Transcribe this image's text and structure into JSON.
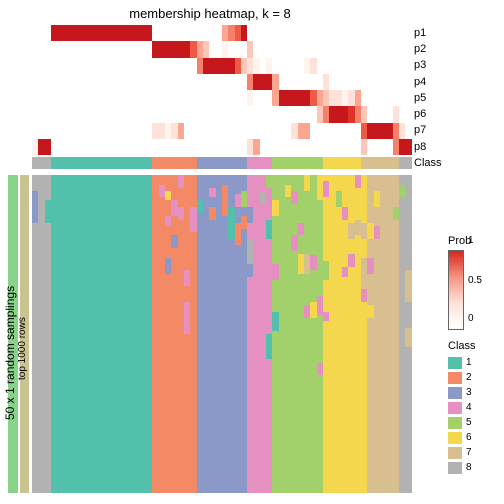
{
  "title": "membership heatmap, k = 8",
  "row_labels": [
    "p1",
    "p2",
    "p3",
    "p4",
    "p5",
    "p6",
    "p7",
    "p8"
  ],
  "class_row_label": "Class",
  "ylabel_sampling": "50 x 1 random samplings",
  "ylabel_rows": "top 1000 rows",
  "n_cols": 60,
  "prob_colors": {
    "0": "#ffffff",
    "1": "#fff3ef",
    "2": "#fee2da",
    "3": "#fcc7b9",
    "4": "#fba690",
    "5": "#f6806a",
    "6": "#ee5a45",
    "7": "#e03328",
    "8": "#c5171c"
  },
  "class_colors": [
    "#53c0ac",
    "#f48a65",
    "#8a99c8",
    "#e690c2",
    "#a2d16b",
    "#f4d74c",
    "#d7bf8f",
    "#b2b2b2"
  ],
  "prob_matrix": [
    [
      0,
      0,
      0,
      8,
      8,
      8,
      8,
      8,
      8,
      8,
      8,
      8,
      8,
      8,
      8,
      8,
      8,
      8,
      8,
      0,
      0,
      0,
      0,
      0,
      0,
      0,
      0,
      0,
      0,
      0,
      4,
      5,
      6,
      8,
      0,
      0,
      0,
      0,
      0,
      0,
      0,
      0,
      0,
      0,
      0,
      0,
      0,
      0,
      0,
      0,
      0,
      0,
      0,
      0,
      0,
      0,
      0,
      0,
      0,
      0
    ],
    [
      0,
      0,
      0,
      0,
      0,
      0,
      0,
      0,
      0,
      0,
      0,
      0,
      0,
      0,
      0,
      0,
      0,
      0,
      0,
      8,
      8,
      8,
      8,
      8,
      8,
      6,
      4,
      3,
      0,
      0,
      1,
      0,
      0,
      0,
      3,
      0,
      0,
      0,
      0,
      0,
      0,
      0,
      0,
      0,
      0,
      0,
      0,
      0,
      0,
      0,
      0,
      0,
      0,
      0,
      0,
      0,
      0,
      0,
      0,
      0
    ],
    [
      0,
      0,
      0,
      0,
      0,
      0,
      0,
      0,
      0,
      0,
      0,
      0,
      0,
      0,
      0,
      0,
      0,
      0,
      0,
      0,
      0,
      0,
      0,
      0,
      0,
      0,
      5,
      8,
      8,
      8,
      8,
      8,
      6,
      3,
      2,
      1,
      0,
      1,
      0,
      0,
      0,
      0,
      0,
      1,
      2,
      0,
      0,
      0,
      0,
      0,
      0,
      0,
      0,
      0,
      0,
      0,
      0,
      0,
      0,
      0
    ],
    [
      0,
      0,
      0,
      0,
      0,
      0,
      0,
      0,
      0,
      0,
      0,
      0,
      0,
      0,
      0,
      0,
      0,
      0,
      0,
      0,
      0,
      0,
      0,
      0,
      0,
      0,
      0,
      0,
      0,
      0,
      0,
      0,
      0,
      0,
      5,
      8,
      8,
      8,
      4,
      0,
      0,
      0,
      0,
      0,
      0,
      0,
      2,
      0,
      0,
      0,
      0,
      0,
      0,
      0,
      0,
      0,
      0,
      0,
      0,
      0
    ],
    [
      0,
      0,
      0,
      0,
      0,
      0,
      0,
      0,
      0,
      0,
      0,
      0,
      0,
      0,
      0,
      0,
      0,
      0,
      0,
      0,
      0,
      0,
      0,
      0,
      0,
      0,
      0,
      0,
      0,
      0,
      0,
      0,
      0,
      0,
      1,
      0,
      0,
      0,
      4,
      8,
      8,
      8,
      8,
      8,
      6,
      4,
      3,
      2,
      2,
      1,
      2,
      4,
      0,
      0,
      0,
      0,
      0,
      0,
      0,
      0
    ],
    [
      0,
      0,
      0,
      0,
      0,
      0,
      0,
      0,
      0,
      0,
      0,
      0,
      0,
      0,
      0,
      0,
      0,
      0,
      0,
      0,
      0,
      0,
      0,
      0,
      0,
      0,
      0,
      0,
      0,
      0,
      0,
      0,
      0,
      0,
      0,
      0,
      0,
      0,
      0,
      0,
      0,
      0,
      0,
      0,
      0,
      3,
      5,
      8,
      8,
      8,
      7,
      5,
      3,
      0,
      0,
      0,
      0,
      2,
      0,
      0
    ],
    [
      0,
      0,
      0,
      0,
      0,
      0,
      0,
      0,
      0,
      0,
      0,
      0,
      0,
      0,
      0,
      0,
      0,
      0,
      0,
      2,
      2,
      1,
      2,
      4,
      0,
      0,
      0,
      0,
      0,
      0,
      0,
      0,
      0,
      0,
      0,
      0,
      0,
      0,
      0,
      0,
      0,
      2,
      4,
      4,
      0,
      0,
      0,
      0,
      0,
      0,
      0,
      0,
      6,
      8,
      8,
      8,
      8,
      5,
      2,
      0
    ],
    [
      1,
      8,
      8,
      0,
      0,
      0,
      0,
      0,
      0,
      0,
      0,
      0,
      0,
      0,
      0,
      0,
      0,
      0,
      0,
      0,
      0,
      0,
      0,
      0,
      0,
      0,
      0,
      0,
      0,
      0,
      0,
      0,
      0,
      0,
      2,
      4,
      0,
      0,
      0,
      0,
      0,
      0,
      0,
      0,
      0,
      0,
      0,
      0,
      0,
      0,
      0,
      0,
      3,
      0,
      0,
      0,
      0,
      5,
      8,
      8
    ]
  ],
  "class_strip": [
    7,
    7,
    7,
    0,
    0,
    0,
    0,
    0,
    0,
    0,
    0,
    0,
    0,
    0,
    0,
    0,
    0,
    0,
    0,
    1,
    1,
    1,
    1,
    1,
    1,
    1,
    2,
    2,
    2,
    2,
    2,
    2,
    2,
    2,
    3,
    3,
    3,
    3,
    4,
    4,
    4,
    4,
    4,
    4,
    4,
    4,
    5,
    5,
    5,
    5,
    5,
    5,
    6,
    6,
    6,
    6,
    6,
    6,
    7,
    7
  ],
  "main_columns": [
    [
      [
        7,
        0.05
      ],
      [
        2,
        0.1
      ],
      [
        7,
        0.85
      ]
    ],
    [
      [
        7,
        1.0
      ]
    ],
    [
      [
        7,
        0.08
      ],
      [
        0,
        0.07
      ],
      [
        7,
        0.85
      ]
    ],
    [
      [
        0,
        1.0
      ]
    ],
    [
      [
        0,
        1.0
      ]
    ],
    [
      [
        0,
        1.0
      ]
    ],
    [
      [
        0,
        1.0
      ]
    ],
    [
      [
        0,
        1.0
      ]
    ],
    [
      [
        0,
        1.0
      ]
    ],
    [
      [
        0,
        1.0
      ]
    ],
    [
      [
        0,
        1.0
      ]
    ],
    [
      [
        0,
        1.0
      ]
    ],
    [
      [
        0,
        1.0
      ]
    ],
    [
      [
        0,
        1.0
      ]
    ],
    [
      [
        0,
        1.0
      ]
    ],
    [
      [
        0,
        1.0
      ]
    ],
    [
      [
        0,
        1.0
      ]
    ],
    [
      [
        0,
        1.0
      ]
    ],
    [
      [
        0,
        1.0
      ]
    ],
    [
      [
        1,
        1.0
      ]
    ],
    [
      [
        1,
        0.03
      ],
      [
        3,
        0.04
      ],
      [
        1,
        0.93
      ]
    ],
    [
      [
        1,
        0.05
      ],
      [
        5,
        0.03
      ],
      [
        1,
        0.05
      ],
      [
        3,
        0.03
      ],
      [
        1,
        0.1
      ],
      [
        2,
        0.05
      ],
      [
        1,
        0.69
      ]
    ],
    [
      [
        1,
        0.08
      ],
      [
        3,
        0.05
      ],
      [
        1,
        0.06
      ],
      [
        2,
        0.04
      ],
      [
        1,
        0.77
      ]
    ],
    [
      [
        3,
        0.04
      ],
      [
        1,
        0.06
      ],
      [
        3,
        0.04
      ],
      [
        1,
        0.86
      ]
    ],
    [
      [
        1,
        0.3
      ],
      [
        3,
        0.05
      ],
      [
        1,
        0.05
      ],
      [
        3,
        0.1
      ],
      [
        1,
        0.5
      ]
    ],
    [
      [
        1,
        0.1
      ],
      [
        3,
        0.08
      ],
      [
        1,
        0.82
      ]
    ],
    [
      [
        2,
        0.08
      ],
      [
        0,
        0.04
      ],
      [
        2,
        0.88
      ]
    ],
    [
      [
        2,
        1.0
      ]
    ],
    [
      [
        2,
        0.04
      ],
      [
        3,
        0.03
      ],
      [
        2,
        0.03
      ],
      [
        1,
        0.04
      ],
      [
        2,
        0.86
      ]
    ],
    [
      [
        2,
        1.0
      ]
    ],
    [
      [
        2,
        0.03
      ],
      [
        1,
        0.1
      ],
      [
        2,
        0.87
      ]
    ],
    [
      [
        2,
        0.1
      ],
      [
        0,
        0.1
      ],
      [
        2,
        0.8
      ]
    ],
    [
      [
        2,
        0.06
      ],
      [
        3,
        0.04
      ],
      [
        2,
        0.05
      ],
      [
        1,
        0.07
      ],
      [
        2,
        0.78
      ]
    ],
    [
      [
        2,
        0.05
      ],
      [
        4,
        0.05
      ],
      [
        2,
        0.03
      ],
      [
        1,
        0.04
      ],
      [
        2,
        0.83
      ]
    ],
    [
      [
        3,
        0.1
      ],
      [
        2,
        0.05
      ],
      [
        3,
        0.05
      ],
      [
        7,
        0.08
      ],
      [
        2,
        0.04
      ],
      [
        3,
        0.68
      ]
    ],
    [
      [
        3,
        1.0
      ]
    ],
    [
      [
        3,
        0.05
      ],
      [
        7,
        0.04
      ],
      [
        3,
        0.91
      ]
    ],
    [
      [
        4,
        0.04
      ],
      [
        3,
        0.1
      ],
      [
        0,
        0.06
      ],
      [
        3,
        0.3
      ],
      [
        0,
        0.08
      ],
      [
        3,
        0.42
      ]
    ],
    [
      [
        4,
        0.08
      ],
      [
        5,
        0.05
      ],
      [
        4,
        0.15
      ],
      [
        3,
        0.05
      ],
      [
        4,
        0.1
      ],
      [
        0,
        0.06
      ],
      [
        4,
        0.51
      ]
    ],
    [
      [
        4,
        1.0
      ]
    ],
    [
      [
        4,
        0.03
      ],
      [
        5,
        0.04
      ],
      [
        4,
        0.93
      ]
    ],
    [
      [
        4,
        0.05
      ],
      [
        3,
        0.04
      ],
      [
        4,
        0.1
      ],
      [
        3,
        0.05
      ],
      [
        4,
        0.76
      ]
    ],
    [
      [
        4,
        0.15
      ],
      [
        3,
        0.04
      ],
      [
        4,
        0.06
      ],
      [
        5,
        0.06
      ],
      [
        4,
        0.69
      ]
    ],
    [
      [
        5,
        0.05
      ],
      [
        4,
        0.2
      ],
      [
        6,
        0.06
      ],
      [
        4,
        0.1
      ],
      [
        3,
        0.04
      ],
      [
        4,
        0.55
      ]
    ],
    [
      [
        4,
        0.25
      ],
      [
        3,
        0.05
      ],
      [
        4,
        0.1
      ],
      [
        5,
        0.05
      ],
      [
        4,
        0.55
      ]
    ],
    [
      [
        5,
        0.08
      ],
      [
        4,
        0.3
      ],
      [
        3,
        0.06
      ],
      [
        4,
        0.15
      ],
      [
        3,
        0.04
      ],
      [
        4,
        0.37
      ]
    ],
    [
      [
        5,
        0.02
      ],
      [
        3,
        0.05
      ],
      [
        5,
        0.2
      ],
      [
        4,
        0.06
      ],
      [
        5,
        0.1
      ],
      [
        3,
        0.03
      ],
      [
        5,
        0.54
      ]
    ],
    [
      [
        5,
        1.0
      ]
    ],
    [
      [
        5,
        0.05
      ],
      [
        4,
        0.05
      ],
      [
        5,
        0.9
      ]
    ],
    [
      [
        5,
        0.1
      ],
      [
        3,
        0.04
      ],
      [
        5,
        0.15
      ],
      [
        3,
        0.03
      ],
      [
        5,
        0.68
      ]
    ],
    [
      [
        5,
        0.15
      ],
      [
        6,
        0.05
      ],
      [
        5,
        0.05
      ],
      [
        3,
        0.04
      ],
      [
        5,
        0.71
      ]
    ],
    [
      [
        3,
        0.04
      ],
      [
        5,
        0.1
      ],
      [
        6,
        0.05
      ],
      [
        5,
        0.81
      ]
    ],
    [
      [
        5,
        0.15
      ],
      [
        6,
        0.05
      ],
      [
        5,
        0.06
      ],
      [
        6,
        0.1
      ],
      [
        3,
        0.04
      ],
      [
        5,
        0.6
      ]
    ],
    [
      [
        6,
        0.15
      ],
      [
        5,
        0.05
      ],
      [
        6,
        0.06
      ],
      [
        3,
        0.05
      ],
      [
        6,
        0.1
      ],
      [
        5,
        0.04
      ],
      [
        6,
        0.55
      ]
    ],
    [
      [
        6,
        0.05
      ],
      [
        5,
        0.05
      ],
      [
        6,
        0.06
      ],
      [
        3,
        0.04
      ],
      [
        6,
        0.8
      ]
    ],
    [
      [
        6,
        1.0
      ]
    ],
    [
      [
        6,
        1.0
      ]
    ],
    [
      [
        6,
        0.1
      ],
      [
        4,
        0.04
      ],
      [
        6,
        0.86
      ]
    ],
    [
      [
        7,
        0.03
      ],
      [
        4,
        0.04
      ],
      [
        7,
        0.93
      ]
    ],
    [
      [
        7,
        0.3
      ],
      [
        6,
        0.1
      ],
      [
        7,
        0.08
      ],
      [
        6,
        0.06
      ],
      [
        7,
        0.46
      ]
    ]
  ],
  "prob_legend": {
    "title": "Prob",
    "ticks": [
      {
        "v": "1",
        "pos": 0
      },
      {
        "v": "0.5",
        "pos": 40
      },
      {
        "v": "0",
        "pos": 78
      }
    ]
  },
  "class_legend": {
    "title": "Class",
    "items": [
      "1",
      "2",
      "3",
      "4",
      "5",
      "6",
      "7",
      "8"
    ]
  }
}
